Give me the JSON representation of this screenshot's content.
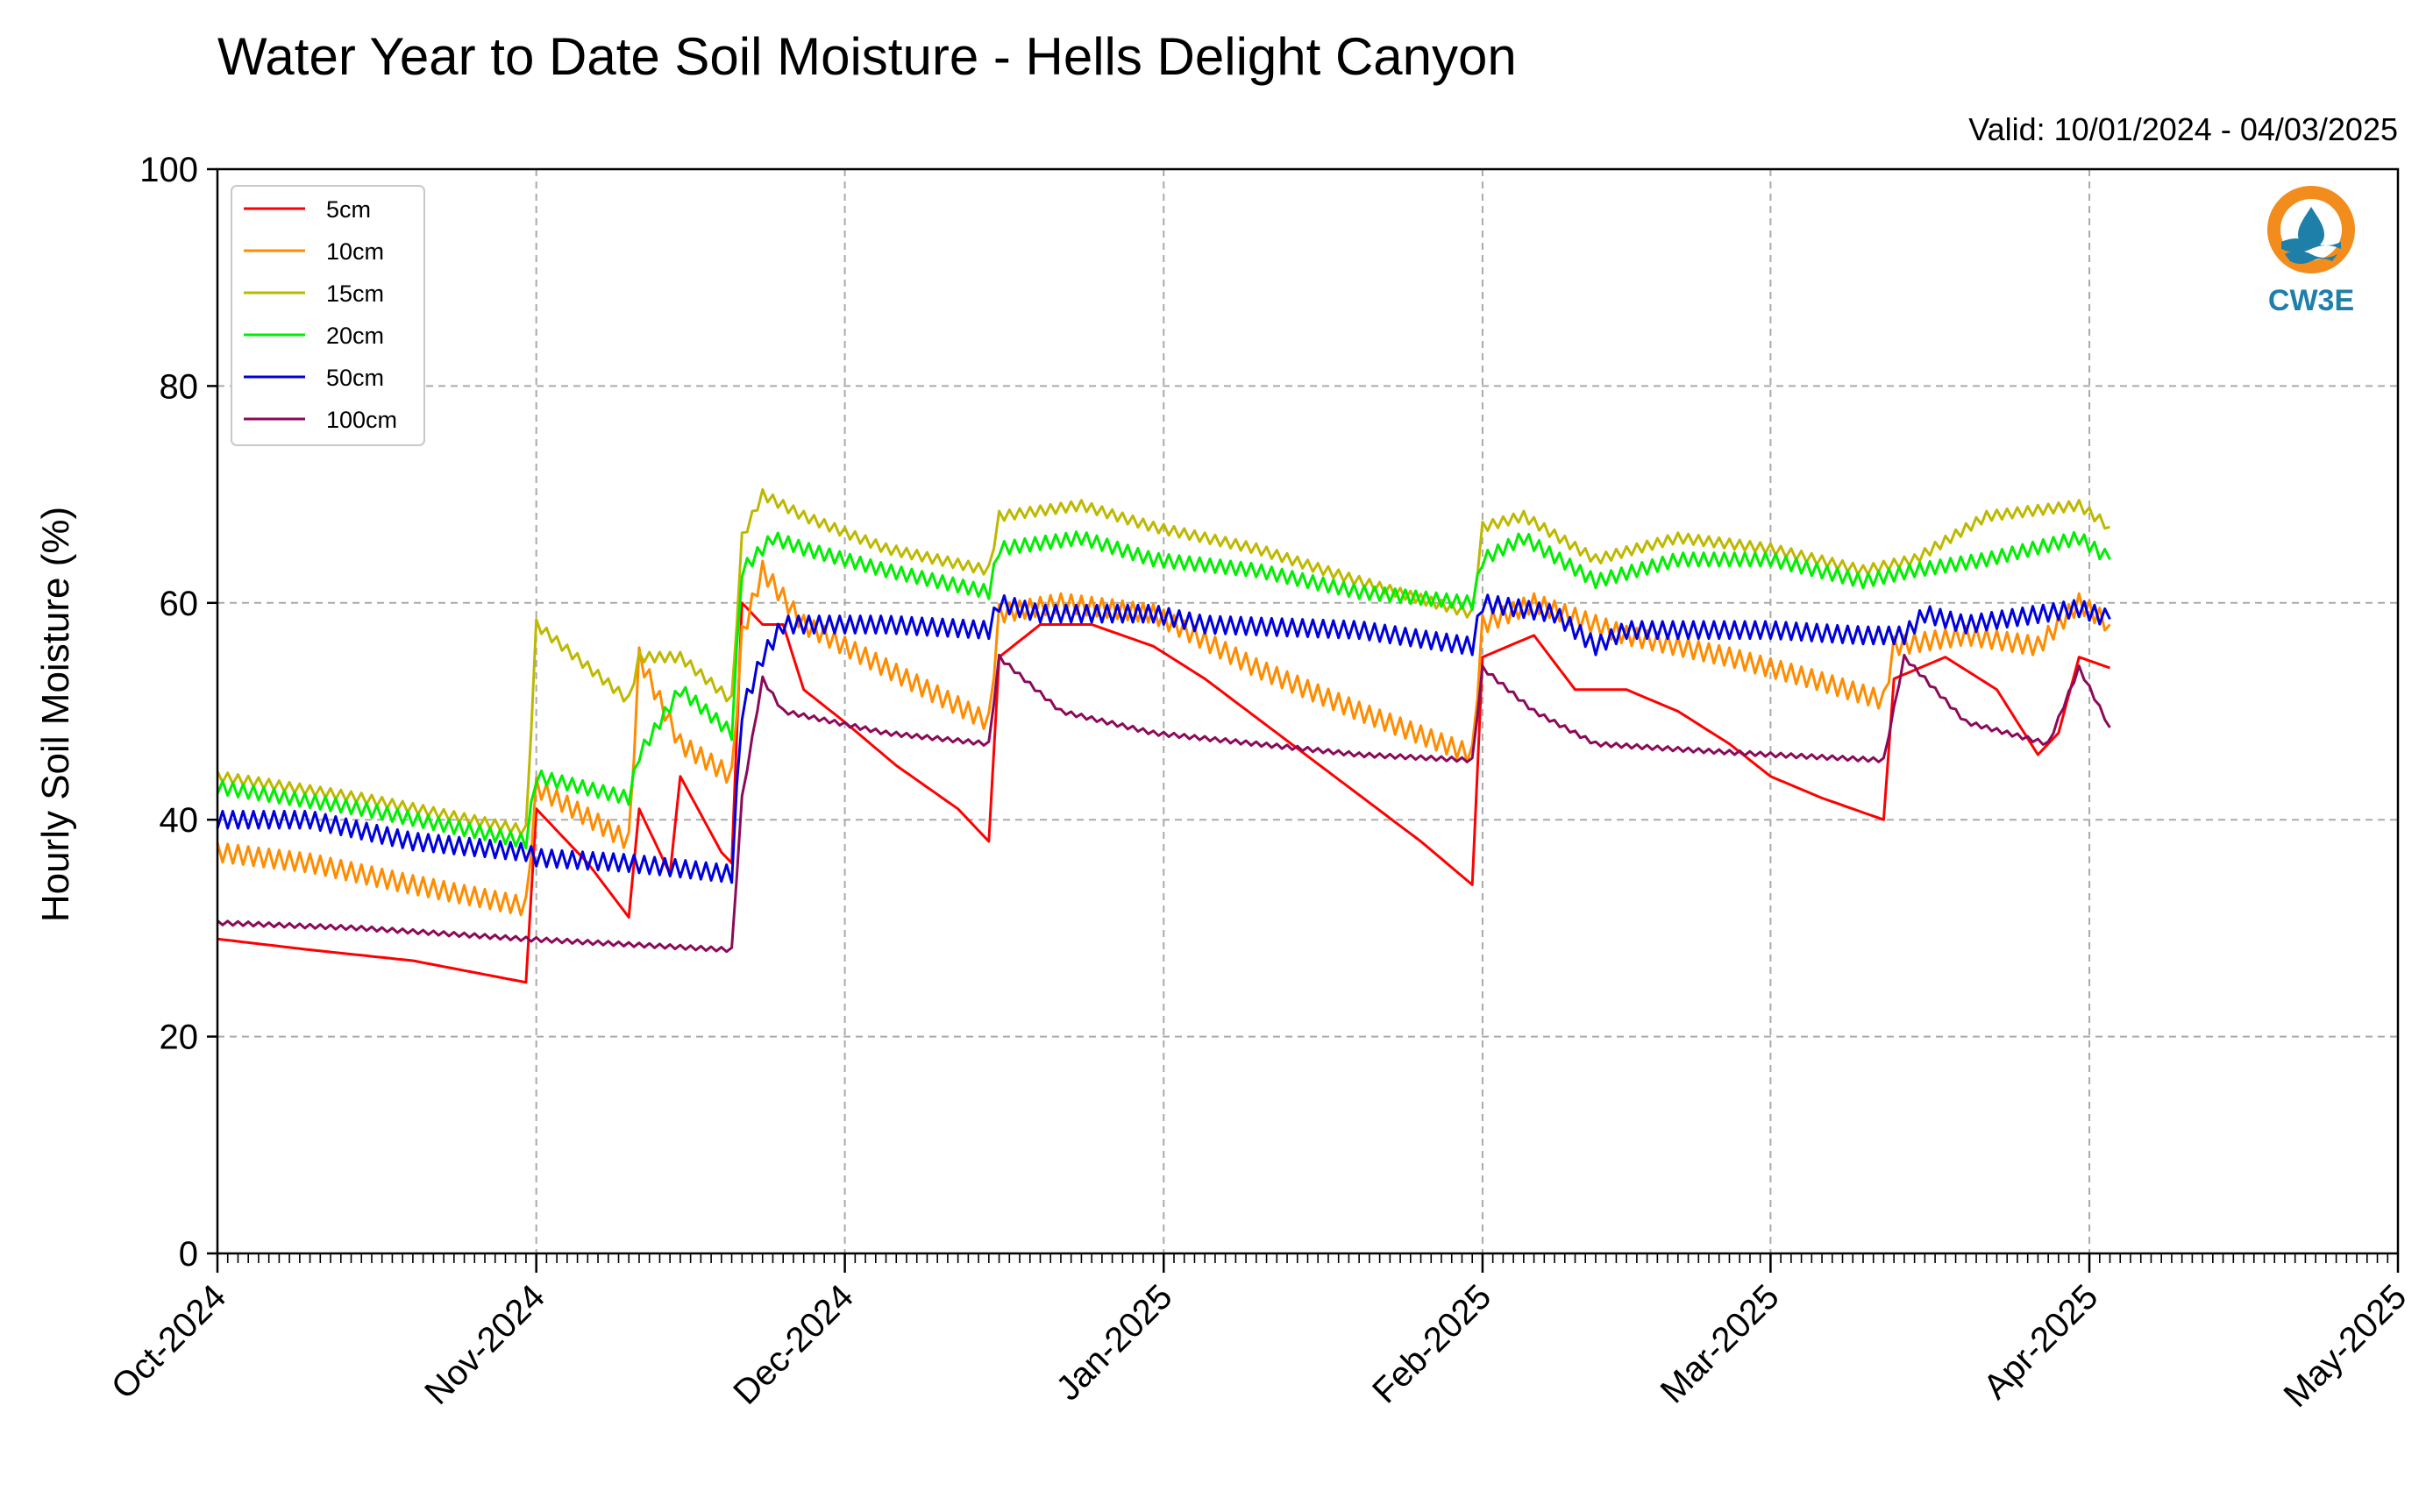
{
  "chart_data": {
    "type": "line",
    "title": "Water Year to Date Soil Moisture - Hells Delight Canyon",
    "subtitle": "Valid: 10/01/2024 - 04/03/2025",
    "xlabel": "",
    "ylabel": "Hourly Soil Moisture (%)",
    "ylim": [
      0,
      100
    ],
    "xlim": [
      "2024-10-01",
      "2025-05-01"
    ],
    "x_ticks": [
      "Oct-2024",
      "Nov-2024",
      "Dec-2024",
      "Jan-2025",
      "Feb-2025",
      "Mar-2025",
      "Apr-2025",
      "May-2025"
    ],
    "y_ticks": [
      "0",
      "20",
      "40",
      "60",
      "80",
      "100"
    ],
    "grid": true,
    "legend_position": "top-left",
    "series": [
      {
        "name": "5cm",
        "color": "#ff0000",
        "points": [
          [
            "2024-10-01",
            29
          ],
          [
            "2024-10-10",
            28
          ],
          [
            "2024-10-20",
            27
          ],
          [
            "2024-10-31",
            25
          ],
          [
            "2024-11-01",
            41
          ],
          [
            "2024-11-06",
            36
          ],
          [
            "2024-11-10",
            31
          ],
          [
            "2024-11-11",
            41
          ],
          [
            "2024-11-14",
            35
          ],
          [
            "2024-11-15",
            44
          ],
          [
            "2024-11-19",
            37
          ],
          [
            "2024-11-20",
            36
          ],
          [
            "2024-11-21",
            60
          ],
          [
            "2024-11-23",
            58
          ],
          [
            "2024-11-25",
            58
          ],
          [
            "2024-11-27",
            52
          ],
          [
            "2024-12-01",
            49
          ],
          [
            "2024-12-06",
            45
          ],
          [
            "2024-12-12",
            41
          ],
          [
            "2024-12-15",
            38
          ],
          [
            "2024-12-16",
            55
          ],
          [
            "2024-12-20",
            58
          ],
          [
            "2024-12-25",
            58
          ],
          [
            "2024-12-31",
            56
          ],
          [
            "2025-01-05",
            53
          ],
          [
            "2025-01-12",
            48
          ],
          [
            "2025-01-19",
            43
          ],
          [
            "2025-01-26",
            38
          ],
          [
            "2025-01-31",
            34
          ],
          [
            "2025-02-01",
            55
          ],
          [
            "2025-02-06",
            57
          ],
          [
            "2025-02-10",
            52
          ],
          [
            "2025-02-15",
            52
          ],
          [
            "2025-02-20",
            50
          ],
          [
            "2025-02-25",
            47
          ],
          [
            "2025-03-01",
            44
          ],
          [
            "2025-03-06",
            42
          ],
          [
            "2025-03-12",
            40
          ],
          [
            "2025-03-13",
            53
          ],
          [
            "2025-03-18",
            55
          ],
          [
            "2025-03-23",
            52
          ],
          [
            "2025-03-27",
            46
          ],
          [
            "2025-03-29",
            48
          ],
          [
            "2025-03-31",
            55
          ],
          [
            "2025-04-03",
            54
          ]
        ]
      },
      {
        "name": "10cm",
        "color": "#ff8c00",
        "points": [
          [
            "2024-10-01",
            37
          ],
          [
            "2024-10-10",
            36
          ],
          [
            "2024-10-20",
            34
          ],
          [
            "2024-10-31",
            32
          ],
          [
            "2024-11-01",
            43
          ],
          [
            "2024-11-10",
            38
          ],
          [
            "2024-11-11",
            55
          ],
          [
            "2024-11-15",
            47
          ],
          [
            "2024-11-20",
            44
          ],
          [
            "2024-11-21",
            57
          ],
          [
            "2024-11-23",
            63
          ],
          [
            "2024-11-27",
            58
          ],
          [
            "2024-12-05",
            54
          ],
          [
            "2024-12-15",
            49
          ],
          [
            "2024-12-16",
            59
          ],
          [
            "2024-12-22",
            60
          ],
          [
            "2024-12-31",
            59
          ],
          [
            "2025-01-10",
            54
          ],
          [
            "2025-01-20",
            50
          ],
          [
            "2025-01-31",
            46
          ],
          [
            "2025-02-01",
            58
          ],
          [
            "2025-02-06",
            60
          ],
          [
            "2025-02-15",
            57
          ],
          [
            "2025-02-25",
            55
          ],
          [
            "2025-03-05",
            53
          ],
          [
            "2025-03-12",
            51
          ],
          [
            "2025-03-13",
            56
          ],
          [
            "2025-03-20",
            57
          ],
          [
            "2025-03-27",
            56
          ],
          [
            "2025-03-31",
            60
          ],
          [
            "2025-04-03",
            58
          ]
        ]
      },
      {
        "name": "15cm",
        "color": "#bdb800",
        "points": [
          [
            "2024-10-01",
            44
          ],
          [
            "2024-10-15",
            42
          ],
          [
            "2024-10-31",
            39
          ],
          [
            "2024-11-01",
            58
          ],
          [
            "2024-11-10",
            51
          ],
          [
            "2024-11-11",
            55
          ],
          [
            "2024-11-15",
            55
          ],
          [
            "2024-11-20",
            51
          ],
          [
            "2024-11-21",
            66
          ],
          [
            "2024-11-23",
            70
          ],
          [
            "2024-11-27",
            68
          ],
          [
            "2024-12-05",
            65
          ],
          [
            "2024-12-15",
            63
          ],
          [
            "2024-12-16",
            68
          ],
          [
            "2024-12-24",
            69
          ],
          [
            "2024-12-31",
            67
          ],
          [
            "2025-01-10",
            65
          ],
          [
            "2025-01-20",
            62
          ],
          [
            "2025-01-31",
            59
          ],
          [
            "2025-02-01",
            67
          ],
          [
            "2025-02-05",
            68
          ],
          [
            "2025-02-12",
            64
          ],
          [
            "2025-02-20",
            66
          ],
          [
            "2025-03-01",
            65
          ],
          [
            "2025-03-10",
            63
          ],
          [
            "2025-03-15",
            64
          ],
          [
            "2025-03-22",
            68
          ],
          [
            "2025-03-31",
            69
          ],
          [
            "2025-04-03",
            67
          ]
        ]
      },
      {
        "name": "20cm",
        "color": "#00ee00",
        "points": [
          [
            "2024-10-01",
            43
          ],
          [
            "2024-10-15",
            41
          ],
          [
            "2024-10-31",
            38
          ],
          [
            "2024-11-01",
            44
          ],
          [
            "2024-11-10",
            42
          ],
          [
            "2024-11-11",
            46
          ],
          [
            "2024-11-15",
            52
          ],
          [
            "2024-11-20",
            48
          ],
          [
            "2024-11-21",
            63
          ],
          [
            "2024-11-24",
            66
          ],
          [
            "2024-11-27",
            65
          ],
          [
            "2024-12-05",
            63
          ],
          [
            "2024-12-15",
            61
          ],
          [
            "2024-12-16",
            65
          ],
          [
            "2024-12-24",
            66
          ],
          [
            "2024-12-31",
            64
          ],
          [
            "2025-01-10",
            63
          ],
          [
            "2025-01-20",
            61
          ],
          [
            "2025-01-31",
            60
          ],
          [
            "2025-02-01",
            64
          ],
          [
            "2025-02-05",
            66
          ],
          [
            "2025-02-12",
            62
          ],
          [
            "2025-02-20",
            64
          ],
          [
            "2025-03-01",
            64
          ],
          [
            "2025-03-10",
            62
          ],
          [
            "2025-03-15",
            63
          ],
          [
            "2025-03-22",
            64
          ],
          [
            "2025-03-31",
            66
          ],
          [
            "2025-04-03",
            64
          ]
        ]
      },
      {
        "name": "50cm",
        "color": "#0000dd",
        "points": [
          [
            "2024-10-01",
            40
          ],
          [
            "2024-10-10",
            40
          ],
          [
            "2024-10-20",
            38
          ],
          [
            "2024-10-31",
            37
          ],
          [
            "2024-11-01",
            36.5
          ],
          [
            "2024-11-10",
            36
          ],
          [
            "2024-11-20",
            35
          ],
          [
            "2024-11-21",
            50
          ],
          [
            "2024-11-23",
            55
          ],
          [
            "2024-11-25",
            58
          ],
          [
            "2024-12-05",
            58
          ],
          [
            "2024-12-15",
            57.5
          ],
          [
            "2024-12-16",
            60
          ],
          [
            "2024-12-20",
            59
          ],
          [
            "2024-12-31",
            59
          ],
          [
            "2025-01-05",
            58
          ],
          [
            "2025-01-20",
            57.5
          ],
          [
            "2025-01-31",
            56
          ],
          [
            "2025-02-01",
            60
          ],
          [
            "2025-02-08",
            59
          ],
          [
            "2025-02-12",
            56
          ],
          [
            "2025-02-15",
            57.5
          ],
          [
            "2025-03-01",
            57.5
          ],
          [
            "2025-03-10",
            57
          ],
          [
            "2025-03-14",
            57
          ],
          [
            "2025-03-16",
            59
          ],
          [
            "2025-03-20",
            58
          ],
          [
            "2025-03-31",
            59.5
          ],
          [
            "2025-04-03",
            58.5
          ]
        ]
      },
      {
        "name": "100cm",
        "color": "#8b0a5a",
        "points": [
          [
            "2024-10-01",
            30.5
          ],
          [
            "2024-10-15",
            30
          ],
          [
            "2024-10-31",
            29
          ],
          [
            "2024-11-10",
            28.5
          ],
          [
            "2024-11-20",
            28
          ],
          [
            "2024-11-21",
            42
          ],
          [
            "2024-11-23",
            53
          ],
          [
            "2024-11-25",
            50
          ],
          [
            "2024-12-05",
            48
          ],
          [
            "2024-12-15",
            47
          ],
          [
            "2024-12-16",
            55
          ],
          [
            "2024-12-22",
            50
          ],
          [
            "2024-12-31",
            48
          ],
          [
            "2025-01-10",
            47
          ],
          [
            "2025-01-20",
            46
          ],
          [
            "2025-01-31",
            45.5
          ],
          [
            "2025-02-01",
            54
          ],
          [
            "2025-02-06",
            50
          ],
          [
            "2025-02-12",
            47
          ],
          [
            "2025-02-20",
            46.5
          ],
          [
            "2025-03-01",
            46
          ],
          [
            "2025-03-12",
            45.5
          ],
          [
            "2025-03-14",
            55
          ],
          [
            "2025-03-20",
            49
          ],
          [
            "2025-03-28",
            47
          ],
          [
            "2025-03-31",
            54
          ],
          [
            "2025-04-03",
            48.5
          ]
        ]
      }
    ]
  },
  "logo": {
    "text": "CW3E",
    "primary_color": "#f28c1c",
    "secondary_color": "#1e7fa8"
  }
}
